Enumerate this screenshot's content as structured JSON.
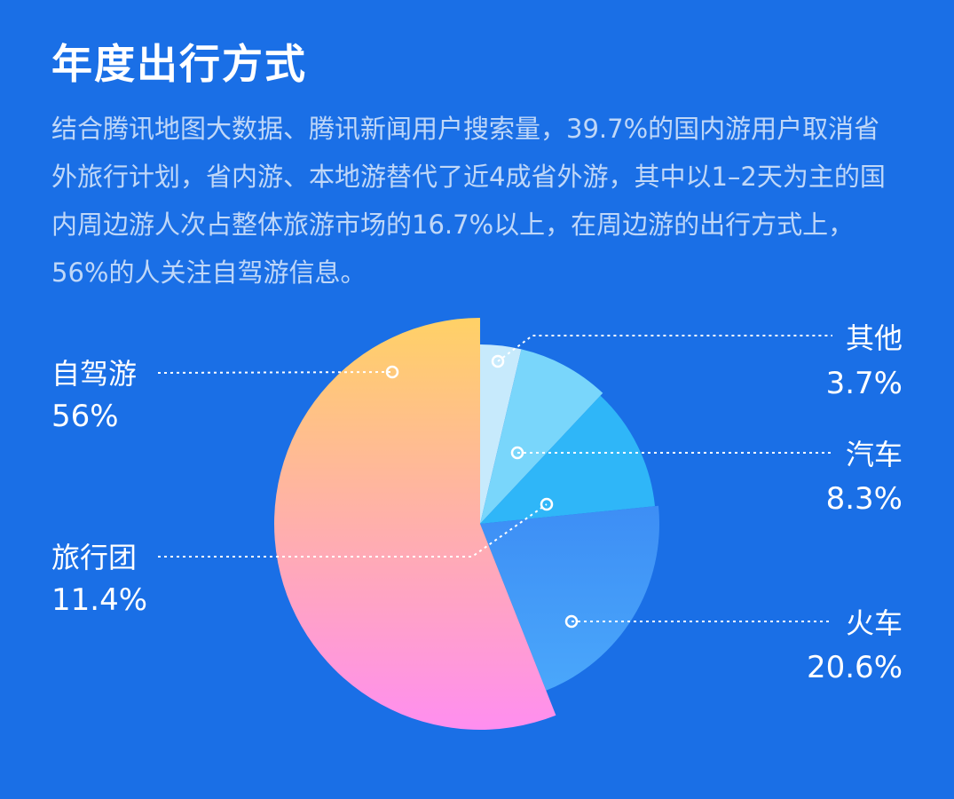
{
  "title": "年度出行方式",
  "description": "结合腾讯地图大数据、腾讯新闻用户搜索量，39.7%的国内游用户取消省外旅行计划，省内游、本地游替代了近4成省外游，其中以1–2天为主的国内周边游人次占整体旅游市场的16.7%以上，在周边游的出行方式上，56%的人关注自驾游信息。",
  "chart_data": {
    "type": "pie",
    "title": "",
    "unit": "%",
    "slices": [
      {
        "name": "自驾游",
        "value": 56,
        "label": "56%",
        "colors": [
          "#ffd166",
          "#ff8ef0"
        ]
      },
      {
        "name": "火车",
        "value": 20.6,
        "label": "20.6%",
        "colors": [
          "#3d8ef5",
          "#4aa7fb"
        ]
      },
      {
        "name": "旅行团",
        "value": 11.4,
        "label": "11.4%",
        "colors": [
          "#2fb6f8",
          "#2fb6f8"
        ]
      },
      {
        "name": "汽车",
        "value": 8.3,
        "label": "8.3%",
        "colors": [
          "#79d6fb",
          "#79d6fb"
        ]
      },
      {
        "name": "其他",
        "value": 3.7,
        "label": "3.7%",
        "colors": [
          "#c7eafc",
          "#c7eafc"
        ]
      }
    ]
  }
}
